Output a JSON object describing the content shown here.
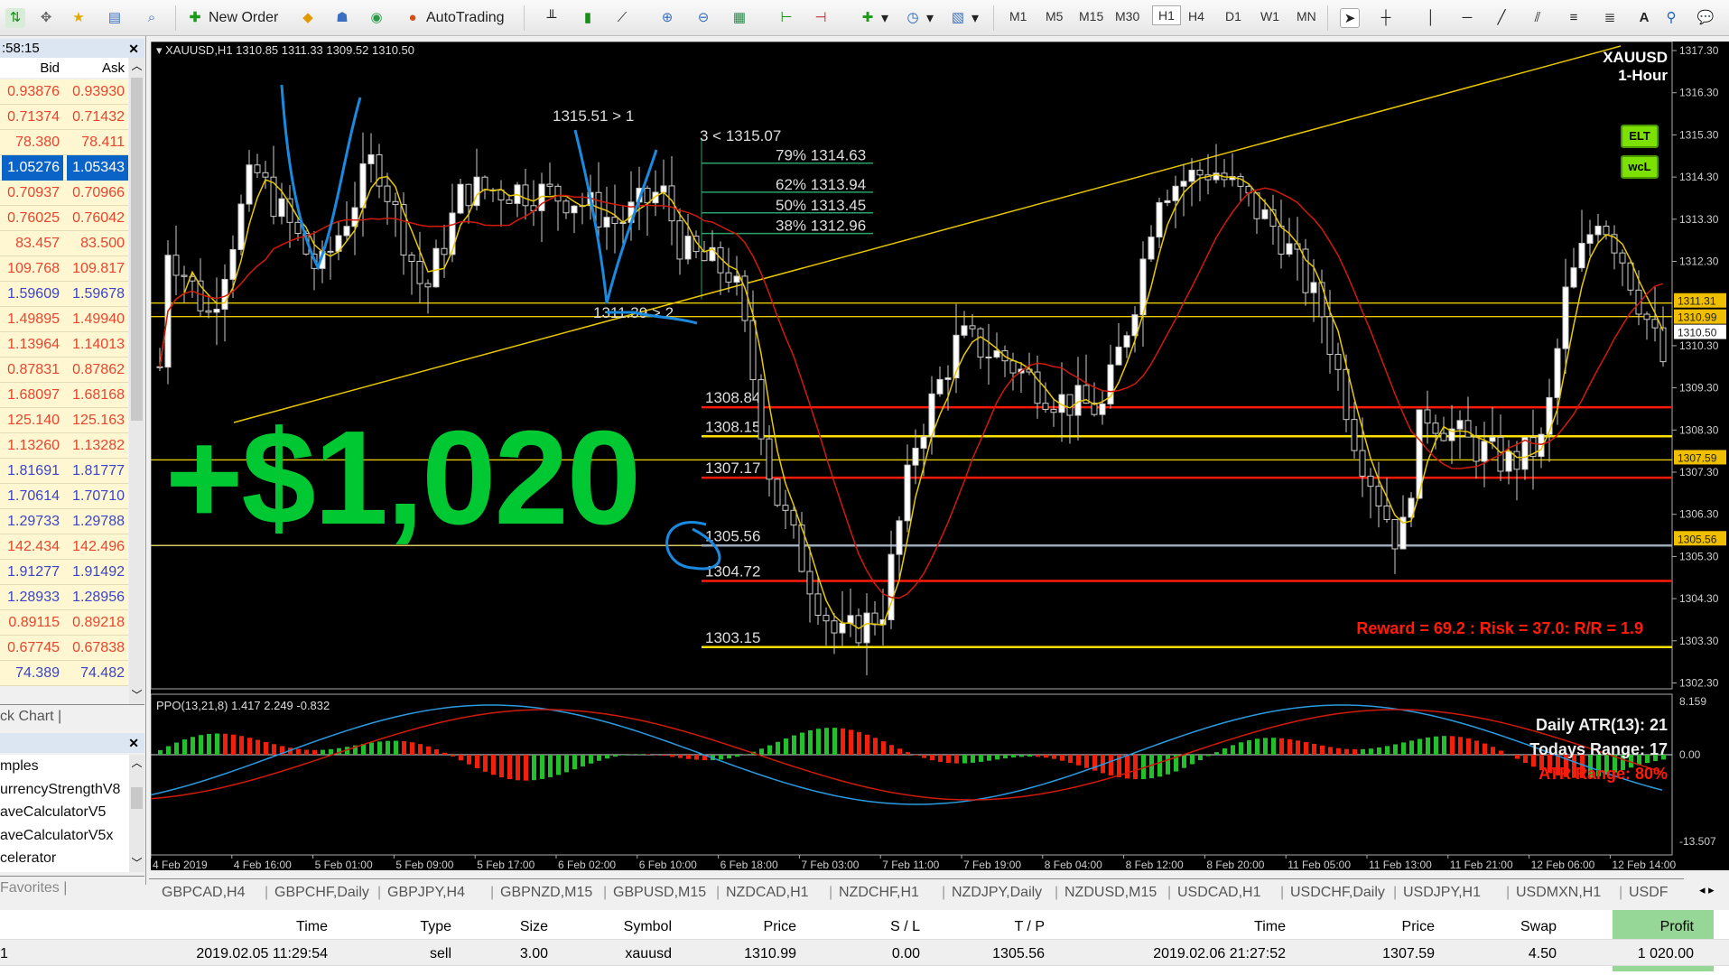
{
  "toolbar": {
    "new_order": "New Order",
    "autotrading": "AutoTrading",
    "timeframes": [
      "M1",
      "M5",
      "M15",
      "M30",
      "H1",
      "H4",
      "D1",
      "W1",
      "MN"
    ],
    "active_timeframe": "H1"
  },
  "market_watch": {
    "title": ":58:15",
    "col_bid": "Bid",
    "col_ask": "Ask",
    "selected_index": 3,
    "rows": [
      [
        "0.93876",
        "0.93930",
        "red"
      ],
      [
        "0.71374",
        "0.71432",
        "red"
      ],
      [
        "78.380",
        "78.411",
        "red"
      ],
      [
        "1.05276",
        "1.05343",
        "red"
      ],
      [
        "0.70937",
        "0.70966",
        "red"
      ],
      [
        "0.76025",
        "0.76042",
        "red"
      ],
      [
        "83.457",
        "83.500",
        "red"
      ],
      [
        "109.768",
        "109.817",
        "red"
      ],
      [
        "1.59609",
        "1.59678",
        "blue"
      ],
      [
        "1.49895",
        "1.49940",
        "red"
      ],
      [
        "1.13964",
        "1.14013",
        "red"
      ],
      [
        "0.87831",
        "0.87862",
        "red"
      ],
      [
        "1.68097",
        "1.68168",
        "red"
      ],
      [
        "125.140",
        "125.163",
        "red"
      ],
      [
        "1.13260",
        "1.13282",
        "red"
      ],
      [
        "1.81691",
        "1.81777",
        "blue"
      ],
      [
        "1.70614",
        "1.70710",
        "blue"
      ],
      [
        "1.29733",
        "1.29788",
        "blue"
      ],
      [
        "142.434",
        "142.496",
        "red"
      ],
      [
        "1.91277",
        "1.91492",
        "blue"
      ],
      [
        "1.28933",
        "1.28956",
        "blue"
      ],
      [
        "0.89115",
        "0.89218",
        "red"
      ],
      [
        "0.67745",
        "0.67838",
        "red"
      ],
      [
        "74.389",
        "74.482",
        "blue"
      ]
    ],
    "tab": "ck Chart"
  },
  "navigator": {
    "items": [
      "mples",
      "urrencyStrengthV8",
      "aveCalculatorV5",
      "aveCalculatorV5x",
      "celerator"
    ],
    "tab": "Favorites"
  },
  "chart": {
    "header": "XAUUSD,H1  1310.85 1311.33 1309.52 1310.50",
    "symbol": "XAUUSD",
    "period": "1-Hour",
    "buttons": [
      "ELT",
      "wcL"
    ],
    "profit_overlay": "+$1,020",
    "price_axis": [
      "1317.30",
      "1316.30",
      "1315.30",
      "1314.30",
      "1313.30",
      "1312.30",
      "1310.30",
      "1309.30",
      "1308.30",
      "1307.30",
      "1306.30",
      "1305.30",
      "1304.30",
      "1303.30",
      "1302.30"
    ],
    "price_tags": [
      {
        "price": "1311.31",
        "kind": "yellow"
      },
      {
        "price": "1310.99",
        "kind": "yellow"
      },
      {
        "price": "1310.50",
        "kind": "white"
      },
      {
        "price": "1307.59",
        "kind": "yellow"
      },
      {
        "price": "1305.56",
        "kind": "yellow"
      }
    ],
    "labels": {
      "wave1": "1315.51 > 1",
      "wave2": "1311.39 > 2",
      "wave3": "3 < 1315.07"
    },
    "fib": [
      {
        "label": "79% 1314.63",
        "price": 1314.63
      },
      {
        "label": "62% 1313.94",
        "price": 1313.94
      },
      {
        "label": "50% 1313.45",
        "price": 1313.45
      },
      {
        "label": "38% 1312.96",
        "price": 1312.96
      }
    ],
    "levels": [
      {
        "label": "1308.84",
        "price": 1308.84,
        "color": "red"
      },
      {
        "label": "1308.15",
        "price": 1308.15,
        "color": "yellow"
      },
      {
        "label": "1307.17",
        "price": 1307.17,
        "color": "red"
      },
      {
        "label": "1305.56",
        "price": 1305.56,
        "color": "gray"
      },
      {
        "label": "1304.72",
        "price": 1304.72,
        "color": "red"
      },
      {
        "label": "1303.15",
        "price": 1303.15,
        "color": "yellow"
      }
    ],
    "rr_text": "Reward = 69.2 : Risk = 37.0: R/R = 1.9",
    "indicator": {
      "header": "PPO(13,21,8) 1.417 2.249 -0.832",
      "axis_top": "8.159",
      "axis_zero": "0.00",
      "axis_bottom": "-13.507",
      "atr": "Daily ATR(13): 21",
      "range": "Todays Range: 17",
      "atr_range": "ATR Range: 80%"
    },
    "time_axis": [
      "4 Feb 2019",
      "4 Feb 16:00",
      "5 Feb 01:00",
      "5 Feb 09:00",
      "5 Feb 17:00",
      "6 Feb 02:00",
      "6 Feb 10:00",
      "6 Feb 18:00",
      "7 Feb 03:00",
      "7 Feb 11:00",
      "7 Feb 19:00",
      "8 Feb 04:00",
      "8 Feb 12:00",
      "8 Feb 20:00",
      "11 Feb 05:00",
      "11 Feb 13:00",
      "11 Feb 21:00",
      "12 Feb 06:00",
      "12 Feb 14:00"
    ]
  },
  "chart_tabs": [
    "GBPCAD,H4",
    "GBPCHF,Daily",
    "GBPJPY,H4",
    "GBPNZD,M15",
    "GBPUSD,M15",
    "NZDCAD,H1",
    "NZDCHF,H1",
    "NZDJPY,Daily",
    "NZDUSD,M15",
    "USDCAD,H1",
    "USDCHF,Daily",
    "USDJPY,H1",
    "USDMXN,H1",
    "USDF"
  ],
  "trades": {
    "headers": [
      "Time",
      "Type",
      "Size",
      "Symbol",
      "Price",
      "S / L",
      "T / P",
      "Time",
      "Price",
      "Swap",
      "Profit"
    ],
    "row": {
      "id": "1",
      "values": [
        "2019.02.05 11:29:54",
        "sell",
        "3.00",
        "xauusd",
        "1310.99",
        "0.00",
        "1305.56",
        "2019.02.06 21:27:52",
        "1307.59",
        "4.50",
        "1 020.00"
      ]
    }
  },
  "colors": {
    "profit_green": "#00c832",
    "bid_red": "#e8452e",
    "bid_blue": "#3a45c8",
    "highlight": "#7ccc7c"
  }
}
